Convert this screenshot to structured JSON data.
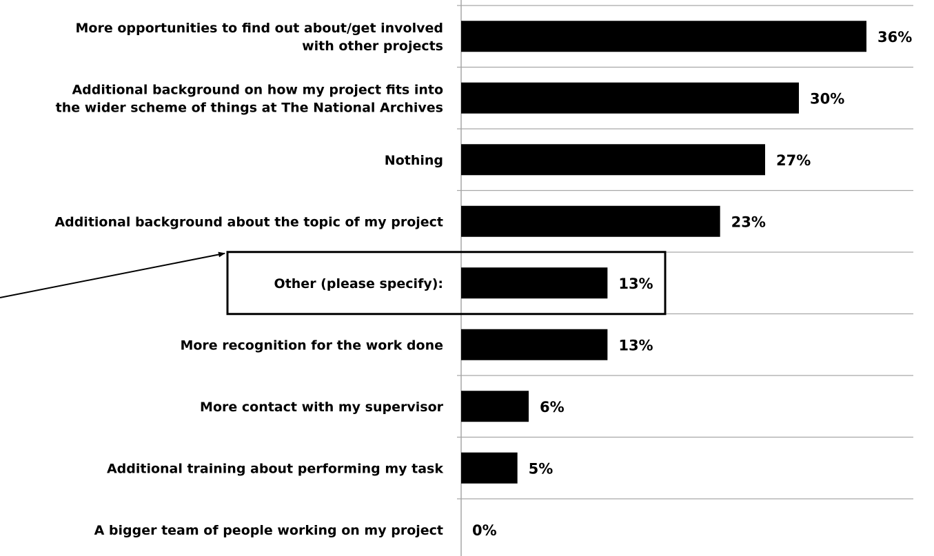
{
  "chart_data": {
    "type": "bar",
    "orientation": "horizontal",
    "categories": [
      [
        "More opportunities to find out about/get involved",
        "with other projects"
      ],
      [
        "Additional background on how my project fits into",
        "the wider scheme of things at The National Archives"
      ],
      [
        "Nothing"
      ],
      [
        "Additional background about the topic of my project"
      ],
      [
        "Other (please specify):"
      ],
      [
        "More recognition for the work done"
      ],
      [
        "More contact with my supervisor"
      ],
      [
        "Additional training about performing my task"
      ],
      [
        "A bigger team of people working on my project"
      ]
    ],
    "values": [
      36,
      30,
      27,
      23,
      13,
      13,
      6,
      5,
      0
    ],
    "value_labels": [
      "36%",
      "30%",
      "27%",
      "23%",
      "13%",
      "13%",
      "6%",
      "5%",
      "0%"
    ],
    "xlim": [
      0,
      40
    ],
    "grid": true,
    "highlight_index": 4,
    "bar_color": "#000000",
    "title": "",
    "xlabel": "",
    "ylabel": ""
  }
}
